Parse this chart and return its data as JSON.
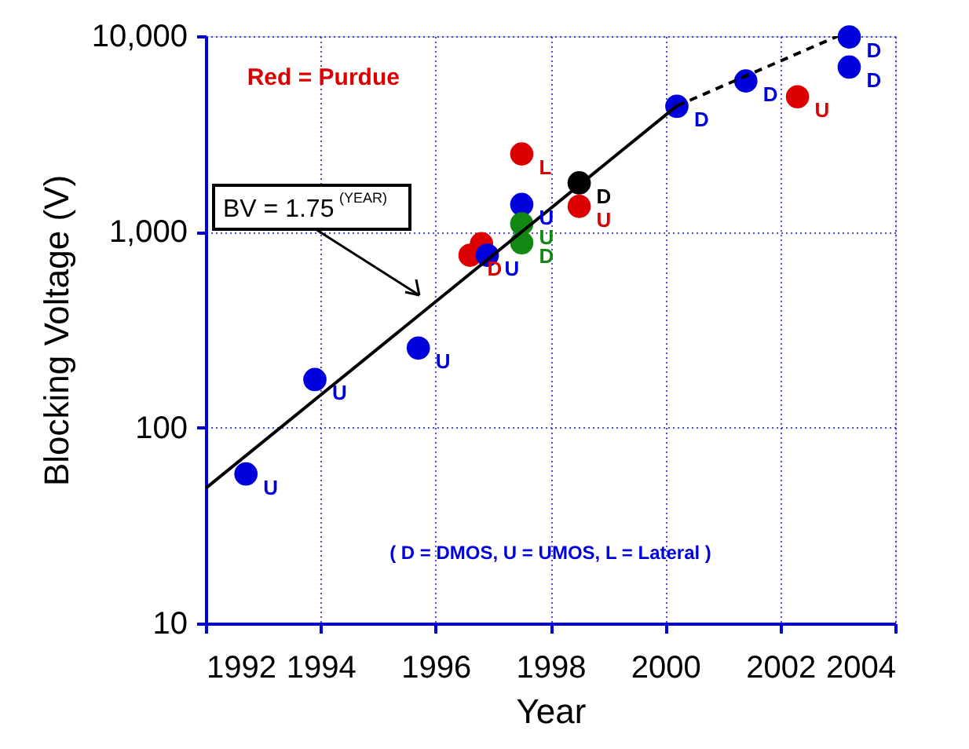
{
  "chart_data": {
    "type": "scatter",
    "xlabel": "Year",
    "ylabel": "Blocking Voltage (V)",
    "xlim": [
      1992,
      2004
    ],
    "xticks": [
      1992,
      1994,
      1996,
      1998,
      2000,
      2002,
      2004
    ],
    "ylim": [
      10,
      10000
    ],
    "yticks": [
      10,
      100,
      {
        "value": 1000,
        "label": "1,000"
      },
      {
        "value": 10000,
        "label": "10,000"
      }
    ],
    "log": "y",
    "grid": true,
    "series": [
      {
        "color": "#dd0000",
        "x": [
          1996.6,
          1996.8,
          1997.5,
          1998.5,
          2002.3
        ],
        "values": [
          760,
          870,
          2500,
          1350,
          4900
        ]
      },
      {
        "color": "#0000dd",
        "x": [
          1992.7,
          1993.9,
          1995.7,
          1996.9,
          1997.5,
          2000.2,
          2001.4,
          2003.2,
          2003.2
        ],
        "values": [
          58,
          176,
          255,
          760,
          1380,
          4380,
          5900,
          9900,
          6950
        ]
      },
      {
        "color": "#118811",
        "x": [
          1997.5,
          1997.5
        ],
        "values": [
          1100,
          880
        ]
      },
      {
        "color": "#000000",
        "x": [
          1998.5
        ],
        "values": [
          1780
        ]
      },
      {
        "type": "line",
        "color": "#000000",
        "line_style": "solid",
        "x": [
          1992,
          2000.2
        ],
        "values": [
          49,
          4400
        ]
      },
      {
        "type": "line",
        "color": "#000000",
        "line_style": "dashed",
        "x": [
          2000.2,
          2003.0
        ],
        "values": [
          4400,
          10000
        ]
      }
    ],
    "annotations": [
      "Red = Purdue",
      "( D = DMOS, U = UMOS, L = Lateral )",
      "BV = 1.75$^{(YEAR)}$",
      {
        "text": "U",
        "x": 1992.7,
        "y": 58
      },
      {
        "text": "U",
        "x": 1993.9,
        "y": 176
      },
      {
        "text": "U",
        "x": 1995.7,
        "y": 255
      },
      {
        "text": "U",
        "x": 1996.9,
        "y": 760
      },
      {
        "text": "U",
        "x": 1997.5,
        "y": 1380
      },
      {
        "text": "D",
        "x": 2000.2,
        "y": 4380
      },
      {
        "text": "D",
        "x": 2001.4,
        "y": 5900
      },
      {
        "text": "D",
        "x": 2003.2,
        "y": 9900
      },
      {
        "text": "D",
        "x": 2003.2,
        "y": 6950
      },
      {
        "text": "D",
        "x": 1996.6,
        "y": 760
      },
      {
        "text": "L",
        "x": 1997.5,
        "y": 2500
      },
      {
        "text": "U",
        "x": 1998.5,
        "y": 1350
      },
      {
        "text": "U",
        "x": 2002.3,
        "y": 4900
      },
      {
        "text": "U",
        "x": 1997.5,
        "y": 1100
      },
      {
        "text": "D",
        "x": 1997.5,
        "y": 880
      },
      {
        "text": "D",
        "x": 1998.5,
        "y": 1780
      }
    ]
  }
}
